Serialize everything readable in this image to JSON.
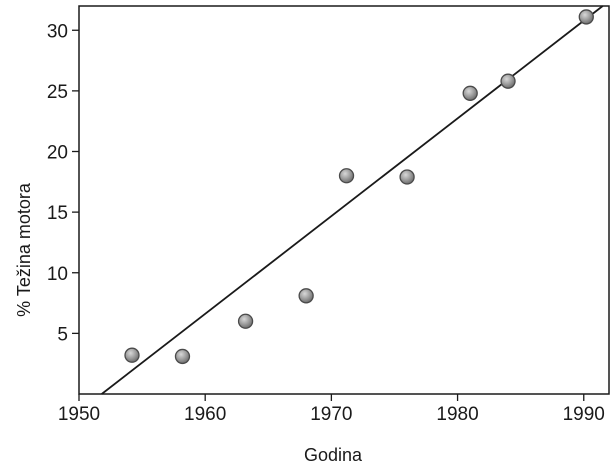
{
  "chart_data": {
    "type": "scatter",
    "xlabel": "Godina",
    "ylabel": "% Težina motora",
    "xlim": [
      1950,
      1992
    ],
    "ylim": [
      0,
      32
    ],
    "xticks": [
      1950,
      1960,
      1970,
      1980,
      1990
    ],
    "yticks": [
      5,
      10,
      15,
      20,
      25,
      30
    ],
    "grid": false,
    "legend": "none",
    "series": [
      {
        "points": [
          {
            "x": 1954.2,
            "y": 3.2
          },
          {
            "x": 1958.2,
            "y": 3.1
          },
          {
            "x": 1963.2,
            "y": 6.0
          },
          {
            "x": 1968.0,
            "y": 8.1
          },
          {
            "x": 1971.2,
            "y": 18.0
          },
          {
            "x": 1976.0,
            "y": 17.9
          },
          {
            "x": 1981.0,
            "y": 24.8
          },
          {
            "x": 1984.0,
            "y": 25.8
          },
          {
            "x": 1990.2,
            "y": 31.1
          }
        ]
      }
    ],
    "trendline": {
      "x": [
        1951.8,
        1991.5
      ],
      "y": [
        0,
        32
      ]
    },
    "colors": {
      "marker_fill": "#9a9a9a",
      "marker_stroke": "#4a4a4a",
      "line": "#1a1a1a",
      "axis": "#1a1a1a"
    }
  }
}
